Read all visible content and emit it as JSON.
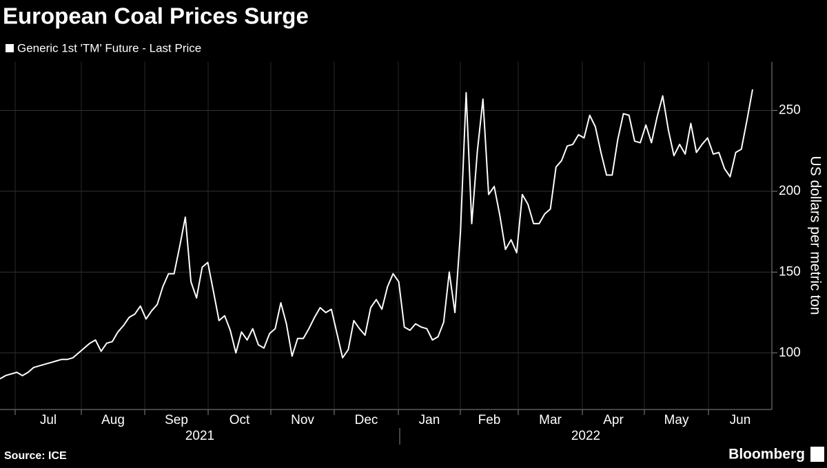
{
  "chart_data": {
    "type": "line",
    "title": "European Coal Prices Surge",
    "y_axis_label": "US dollars per metric ton",
    "source": "Source: ICE",
    "brand": "Bloomberg",
    "months": [
      "Jul",
      "Aug",
      "Sep",
      "Oct",
      "Nov",
      "Dec",
      "Jan",
      "Feb",
      "Mar",
      "Apr",
      "May",
      "Jun"
    ],
    "years": [
      "2021",
      "2022"
    ],
    "series": [
      {
        "name": "Generic 1st 'TM' Future - Last Price",
        "color": "#ffffff",
        "values": [
          84,
          86,
          87,
          88,
          86,
          88,
          91,
          92,
          93,
          94,
          95,
          96,
          96,
          97,
          100,
          103,
          106,
          108,
          101,
          106,
          107,
          113,
          117,
          122,
          124,
          129,
          121,
          126,
          130,
          141,
          149,
          149,
          166,
          184,
          144,
          134,
          153,
          156,
          138,
          120,
          123,
          114,
          100,
          113,
          108,
          115,
          105,
          103,
          112,
          115,
          131,
          118,
          98,
          109,
          109,
          115,
          122,
          128,
          125,
          127,
          112,
          97,
          102,
          120,
          115,
          111,
          128,
          133,
          127,
          141,
          149,
          144,
          116,
          114,
          118,
          116,
          115,
          108,
          110,
          119,
          150,
          125,
          175,
          261,
          180,
          225,
          257,
          198,
          203,
          185,
          164,
          170,
          162,
          198,
          192,
          180,
          180,
          186,
          189,
          215,
          219,
          228,
          229,
          235,
          233,
          247,
          240,
          224,
          210,
          210,
          232,
          248,
          247,
          231,
          230,
          241,
          230,
          246,
          259,
          238,
          222,
          229,
          223,
          242,
          224,
          229,
          233,
          223,
          224,
          214,
          209,
          224,
          226,
          244,
          263
        ]
      }
    ],
    "ylim": [
      65,
      280
    ],
    "yticks": [
      100,
      150,
      200,
      250
    ],
    "grid": true
  }
}
